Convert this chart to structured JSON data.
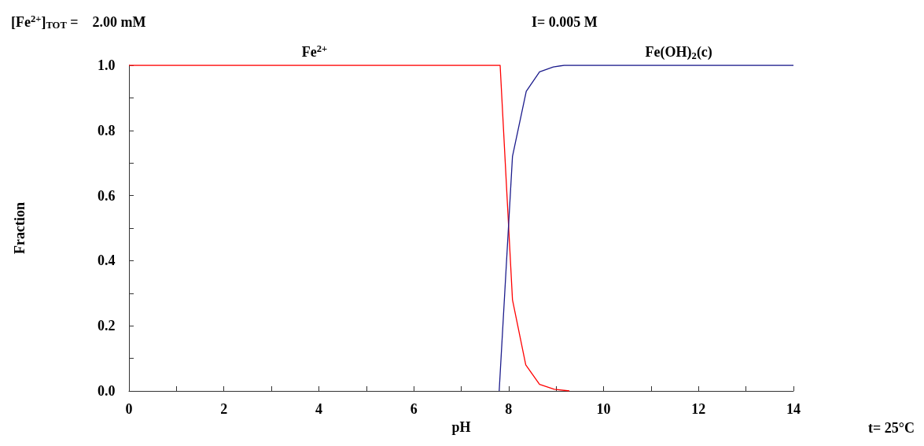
{
  "chart_data": {
    "type": "line",
    "xlabel": "pH",
    "ylabel": "Fraction",
    "annotations": [
      "[Fe$^{2+}$]$_{TOT}$ =    2.00 mM",
      "I= 0.005 M",
      "t= 25°C"
    ],
    "series": [
      {
        "name": "Fe$^{2+}$",
        "color": "#ff0000",
        "x": [
          0,
          7.82,
          8.08,
          8.36,
          8.65,
          8.96,
          9.28
        ],
        "values": [
          1.0,
          1.0,
          0.28,
          0.08,
          0.02,
          0.005,
          0.0
        ]
      },
      {
        "name": "Fe(OH)$_{2}$(c)",
        "color": "#1c1c8c",
        "x": [
          7.8,
          8.08,
          8.37,
          8.65,
          8.94,
          9.17,
          14
        ],
        "values": [
          0.0,
          0.72,
          0.92,
          0.98,
          0.995,
          1.0,
          1.0
        ]
      }
    ],
    "xlim": [
      0,
      14
    ],
    "xticks": [
      0,
      {
        "value": 1,
        "label": null
      },
      2,
      {
        "value": 3,
        "label": null
      },
      4,
      {
        "value": 5,
        "label": null
      },
      6,
      {
        "value": 7,
        "label": null
      },
      8,
      {
        "value": 9,
        "label": null
      },
      10,
      {
        "value": 11,
        "label": null
      },
      12,
      {
        "value": 13,
        "label": null
      },
      14
    ],
    "ylim": [
      0,
      1
    ],
    "yticks": [
      {
        "value": 0,
        "label": "0.0"
      },
      {
        "value": 0.1,
        "label": null
      },
      {
        "value": 0.2,
        "label": "0.2"
      },
      {
        "value": 0.3,
        "label": null
      },
      {
        "value": 0.4,
        "label": "0.4"
      },
      {
        "value": 0.5,
        "label": null
      },
      {
        "value": 0.6,
        "label": "0.6"
      },
      {
        "value": 0.7,
        "label": null
      },
      {
        "value": 0.8,
        "label": "0.8"
      },
      {
        "value": 0.9,
        "label": null
      },
      {
        "value": 1,
        "label": "1.0"
      }
    ],
    "grid": false,
    "legend": false,
    "marker": "none",
    "line_style": "solid"
  }
}
